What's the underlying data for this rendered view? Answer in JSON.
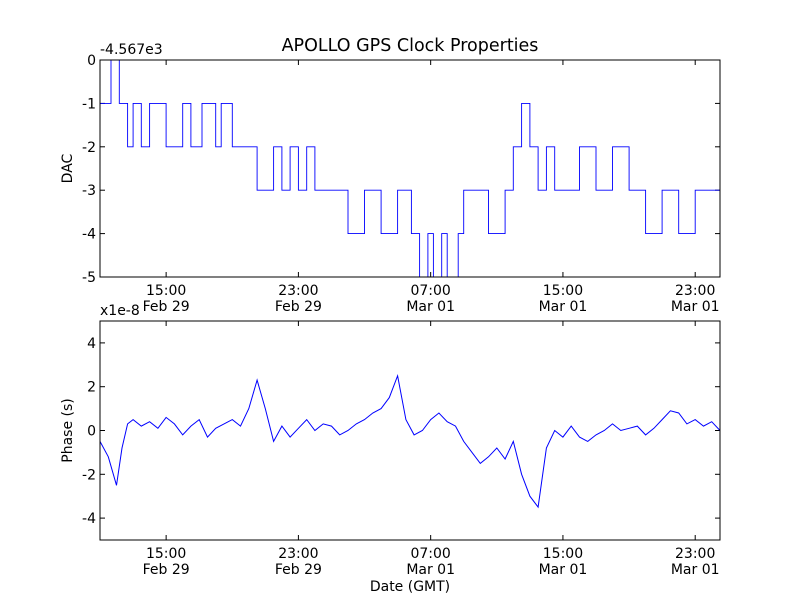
{
  "title": "APOLLO GPS Clock Properties",
  "xlabel": "Date (GMT)",
  "colors": {
    "line": "#0000ff",
    "axes": "#000000",
    "background": "#ffffff"
  },
  "chart_data": [
    {
      "type": "line",
      "ylabel": "DAC",
      "offset_label": "-4.567e3",
      "ylim": [
        -5,
        0
      ],
      "yticks": [
        0,
        -1,
        -2,
        -3,
        -4,
        -5
      ],
      "ytick_labels": [
        "0",
        "-1",
        "-2",
        "-3",
        "-4",
        "-5"
      ],
      "xlim": [
        "2012-02-29T11:00",
        "2012-03-02T00:30"
      ],
      "xticks": [
        {
          "time": "2012-02-29T15:00",
          "line1": "15:00",
          "line2": "Feb 29"
        },
        {
          "time": "2012-02-29T23:00",
          "line1": "23:00",
          "line2": "Feb 29"
        },
        {
          "time": "2012-03-01T07:00",
          "line1": "07:00",
          "line2": "Mar 01"
        },
        {
          "time": "2012-03-01T15:00",
          "line1": "15:00",
          "line2": "Mar 01"
        },
        {
          "time": "2012-03-01T23:00",
          "line1": "23:00",
          "line2": "Mar 01"
        }
      ],
      "grid": false,
      "x": [
        "2012-02-29T11:00",
        "2012-02-29T11:40",
        "2012-02-29T11:40",
        "2012-02-29T12:10",
        "2012-02-29T12:10",
        "2012-02-29T12:40",
        "2012-02-29T12:40",
        "2012-02-29T13:00",
        "2012-02-29T13:00",
        "2012-02-29T13:30",
        "2012-02-29T13:30",
        "2012-02-29T14:00",
        "2012-02-29T14:00",
        "2012-02-29T15:00",
        "2012-02-29T15:00",
        "2012-02-29T16:00",
        "2012-02-29T16:00",
        "2012-02-29T16:30",
        "2012-02-29T16:30",
        "2012-02-29T17:10",
        "2012-02-29T17:10",
        "2012-02-29T18:00",
        "2012-02-29T18:00",
        "2012-02-29T18:20",
        "2012-02-29T18:20",
        "2012-02-29T19:00",
        "2012-02-29T19:00",
        "2012-02-29T20:30",
        "2012-02-29T20:30",
        "2012-02-29T21:30",
        "2012-02-29T21:30",
        "2012-02-29T22:00",
        "2012-02-29T22:00",
        "2012-02-29T22:30",
        "2012-02-29T22:30",
        "2012-02-29T23:00",
        "2012-02-29T23:00",
        "2012-02-29T23:30",
        "2012-02-29T23:30",
        "2012-03-01T00:00",
        "2012-03-01T00:00",
        "2012-03-01T02:00",
        "2012-03-01T02:00",
        "2012-03-01T03:00",
        "2012-03-01T03:00",
        "2012-03-01T04:00",
        "2012-03-01T04:00",
        "2012-03-01T05:00",
        "2012-03-01T05:00",
        "2012-03-01T05:50",
        "2012-03-01T05:50",
        "2012-03-01T06:20",
        "2012-03-01T06:20",
        "2012-03-01T06:50",
        "2012-03-01T06:50",
        "2012-03-01T07:10",
        "2012-03-01T07:10",
        "2012-03-01T07:40",
        "2012-03-01T07:40",
        "2012-03-01T08:00",
        "2012-03-01T08:00",
        "2012-03-01T08:40",
        "2012-03-01T08:40",
        "2012-03-01T09:00",
        "2012-03-01T09:00",
        "2012-03-01T10:30",
        "2012-03-01T10:30",
        "2012-03-01T11:30",
        "2012-03-01T11:30",
        "2012-03-01T12:00",
        "2012-03-01T12:00",
        "2012-03-01T12:30",
        "2012-03-01T12:30",
        "2012-03-01T13:00",
        "2012-03-01T13:00",
        "2012-03-01T13:30",
        "2012-03-01T13:30",
        "2012-03-01T14:00",
        "2012-03-01T14:00",
        "2012-03-01T14:30",
        "2012-03-01T14:30",
        "2012-03-01T16:00",
        "2012-03-01T16:00",
        "2012-03-01T17:00",
        "2012-03-01T17:00",
        "2012-03-01T18:00",
        "2012-03-01T18:00",
        "2012-03-01T19:00",
        "2012-03-01T19:00",
        "2012-03-01T20:00",
        "2012-03-01T20:00",
        "2012-03-01T21:00",
        "2012-03-01T21:00",
        "2012-03-01T22:00",
        "2012-03-01T22:00",
        "2012-03-01T23:00",
        "2012-03-01T23:00",
        "2012-03-01T23:30",
        "2012-03-01T23:30",
        "2012-03-02T00:30"
      ],
      "y": [
        -1,
        -1,
        0,
        0,
        -1,
        -1,
        -2,
        -2,
        -1,
        -1,
        -2,
        -2,
        -1,
        -1,
        -2,
        -2,
        -1,
        -1,
        -2,
        -2,
        -1,
        -1,
        -2,
        -2,
        -1,
        -1,
        -2,
        -2,
        -3,
        -3,
        -2,
        -2,
        -3,
        -3,
        -2,
        -2,
        -3,
        -3,
        -2,
        -2,
        -3,
        -3,
        -4,
        -4,
        -3,
        -3,
        -4,
        -4,
        -3,
        -3,
        -4,
        -4,
        -5,
        -5,
        -4,
        -4,
        -5,
        -5,
        -4,
        -4,
        -5,
        -5,
        -4,
        -4,
        -3,
        -3,
        -4,
        -4,
        -3,
        -3,
        -2,
        -2,
        -1,
        -1,
        -2,
        -2,
        -3,
        -3,
        -2,
        -2,
        -3,
        -3,
        -2,
        -2,
        -3,
        -3,
        -2,
        -2,
        -3,
        -3,
        -4,
        -4,
        -3,
        -3,
        -4,
        -4,
        -3,
        -3,
        -3,
        -3
      ]
    },
    {
      "type": "line",
      "ylabel": "Phase (s)",
      "offset_label": "x1e-8",
      "ylim": [
        -5,
        5
      ],
      "yticks": [
        4,
        2,
        0,
        -2,
        -4
      ],
      "ytick_labels": [
        "4",
        "2",
        "0",
        "-2",
        "-4"
      ],
      "xlim": [
        "2012-02-29T11:00",
        "2012-03-02T00:30"
      ],
      "xticks": [
        {
          "time": "2012-02-29T15:00",
          "line1": "15:00",
          "line2": "Feb 29"
        },
        {
          "time": "2012-02-29T23:00",
          "line1": "23:00",
          "line2": "Feb 29"
        },
        {
          "time": "2012-03-01T07:00",
          "line1": "07:00",
          "line2": "Mar 01"
        },
        {
          "time": "2012-03-01T15:00",
          "line1": "15:00",
          "line2": "Mar 01"
        },
        {
          "time": "2012-03-01T23:00",
          "line1": "23:00",
          "line2": "Mar 01"
        }
      ],
      "grid": false,
      "x": [
        "2012-02-29T11:00",
        "2012-02-29T11:30",
        "2012-02-29T12:00",
        "2012-02-29T12:20",
        "2012-02-29T12:40",
        "2012-02-29T13:00",
        "2012-02-29T13:30",
        "2012-02-29T14:00",
        "2012-02-29T14:30",
        "2012-02-29T15:00",
        "2012-02-29T15:30",
        "2012-02-29T16:00",
        "2012-02-29T16:30",
        "2012-02-29T17:00",
        "2012-02-29T17:30",
        "2012-02-29T18:00",
        "2012-02-29T18:30",
        "2012-02-29T19:00",
        "2012-02-29T19:30",
        "2012-02-29T20:00",
        "2012-02-29T20:30",
        "2012-02-29T21:00",
        "2012-02-29T21:30",
        "2012-02-29T22:00",
        "2012-02-29T22:30",
        "2012-02-29T23:00",
        "2012-02-29T23:30",
        "2012-03-01T00:00",
        "2012-03-01T00:30",
        "2012-03-01T01:00",
        "2012-03-01T01:30",
        "2012-03-01T02:00",
        "2012-03-01T02:30",
        "2012-03-01T03:00",
        "2012-03-01T03:30",
        "2012-03-01T04:00",
        "2012-03-01T04:30",
        "2012-03-01T05:00",
        "2012-03-01T05:30",
        "2012-03-01T06:00",
        "2012-03-01T06:30",
        "2012-03-01T07:00",
        "2012-03-01T07:30",
        "2012-03-01T08:00",
        "2012-03-01T08:30",
        "2012-03-01T09:00",
        "2012-03-01T09:30",
        "2012-03-01T10:00",
        "2012-03-01T10:30",
        "2012-03-01T11:00",
        "2012-03-01T11:30",
        "2012-03-01T12:00",
        "2012-03-01T12:30",
        "2012-03-01T13:00",
        "2012-03-01T13:30",
        "2012-03-01T14:00",
        "2012-03-01T14:30",
        "2012-03-01T15:00",
        "2012-03-01T15:30",
        "2012-03-01T16:00",
        "2012-03-01T16:30",
        "2012-03-01T17:00",
        "2012-03-01T17:30",
        "2012-03-01T18:00",
        "2012-03-01T18:30",
        "2012-03-01T19:00",
        "2012-03-01T19:30",
        "2012-03-01T20:00",
        "2012-03-01T20:30",
        "2012-03-01T21:00",
        "2012-03-01T21:30",
        "2012-03-01T22:00",
        "2012-03-01T22:30",
        "2012-03-01T23:00",
        "2012-03-01T23:30",
        "2012-03-02T00:00",
        "2012-03-02T00:30"
      ],
      "y": [
        -0.5,
        -1.2,
        -2.5,
        -0.8,
        0.3,
        0.5,
        0.2,
        0.4,
        0.1,
        0.6,
        0.3,
        -0.2,
        0.2,
        0.5,
        -0.3,
        0.1,
        0.3,
        0.5,
        0.2,
        1.0,
        2.3,
        1.0,
        -0.5,
        0.2,
        -0.3,
        0.1,
        0.5,
        0.0,
        0.3,
        0.2,
        -0.2,
        0.0,
        0.3,
        0.5,
        0.8,
        1.0,
        1.5,
        2.5,
        0.5,
        -0.2,
        0.0,
        0.5,
        0.8,
        0.4,
        0.2,
        -0.5,
        -1.0,
        -1.5,
        -1.2,
        -0.8,
        -1.3,
        -0.5,
        -2.0,
        -3.0,
        -3.5,
        -0.8,
        0.0,
        -0.3,
        0.2,
        -0.3,
        -0.5,
        -0.2,
        0.0,
        0.3,
        0.0,
        0.1,
        0.2,
        -0.2,
        0.1,
        0.5,
        0.9,
        0.8,
        0.3,
        0.5,
        0.2,
        0.4,
        0.0
      ]
    }
  ]
}
